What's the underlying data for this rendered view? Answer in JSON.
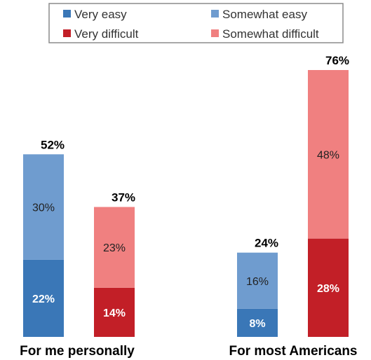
{
  "chart_data": {
    "type": "bar",
    "stacked": true,
    "categories": [
      "For me personally",
      "For most Americans"
    ],
    "legend": {
      "placement": "top",
      "entries": [
        {
          "name": "Very easy",
          "color": "#3a77b7"
        },
        {
          "name": "Somewhat easy",
          "color": "#6f9ccf"
        },
        {
          "name": "Very difficult",
          "color": "#c21f27"
        },
        {
          "name": "Somewhat difficult",
          "color": "#f08080"
        }
      ]
    },
    "groups": [
      {
        "label": "For me personally",
        "bars": [
          {
            "stack": "easy",
            "total_label": "52%",
            "segments": [
              {
                "series": "Very easy",
                "value": 22,
                "label": "22%",
                "color": "#3a77b7",
                "text_color": "#ffffff",
                "bold": true
              },
              {
                "series": "Somewhat easy",
                "value": 30,
                "label": "30%",
                "color": "#6f9ccf",
                "text_color": "#222222",
                "bold": false
              }
            ]
          },
          {
            "stack": "difficult",
            "total_label": "37%",
            "segments": [
              {
                "series": "Very difficult",
                "value": 14,
                "label": "14%",
                "color": "#c21f27",
                "text_color": "#ffffff",
                "bold": true
              },
              {
                "series": "Somewhat difficult",
                "value": 23,
                "label": "23%",
                "color": "#f08080",
                "text_color": "#222222",
                "bold": false
              }
            ]
          }
        ]
      },
      {
        "label": "For most Americans",
        "bars": [
          {
            "stack": "easy",
            "total_label": "24%",
            "segments": [
              {
                "series": "Very easy",
                "value": 8,
                "label": "8%",
                "color": "#3a77b7",
                "text_color": "#ffffff",
                "bold": true
              },
              {
                "series": "Somewhat easy",
                "value": 16,
                "label": "16%",
                "color": "#6f9ccf",
                "text_color": "#222222",
                "bold": false
              }
            ]
          },
          {
            "stack": "difficult",
            "total_label": "76%",
            "segments": [
              {
                "series": "Very difficult",
                "value": 28,
                "label": "28%",
                "color": "#c21f27",
                "text_color": "#ffffff",
                "bold": true
              },
              {
                "series": "Somewhat difficult",
                "value": 48,
                "label": "48%",
                "color": "#f08080",
                "text_color": "#222222",
                "bold": false
              }
            ]
          }
        ]
      }
    ],
    "ylim": [
      0,
      76
    ],
    "grid": false
  }
}
